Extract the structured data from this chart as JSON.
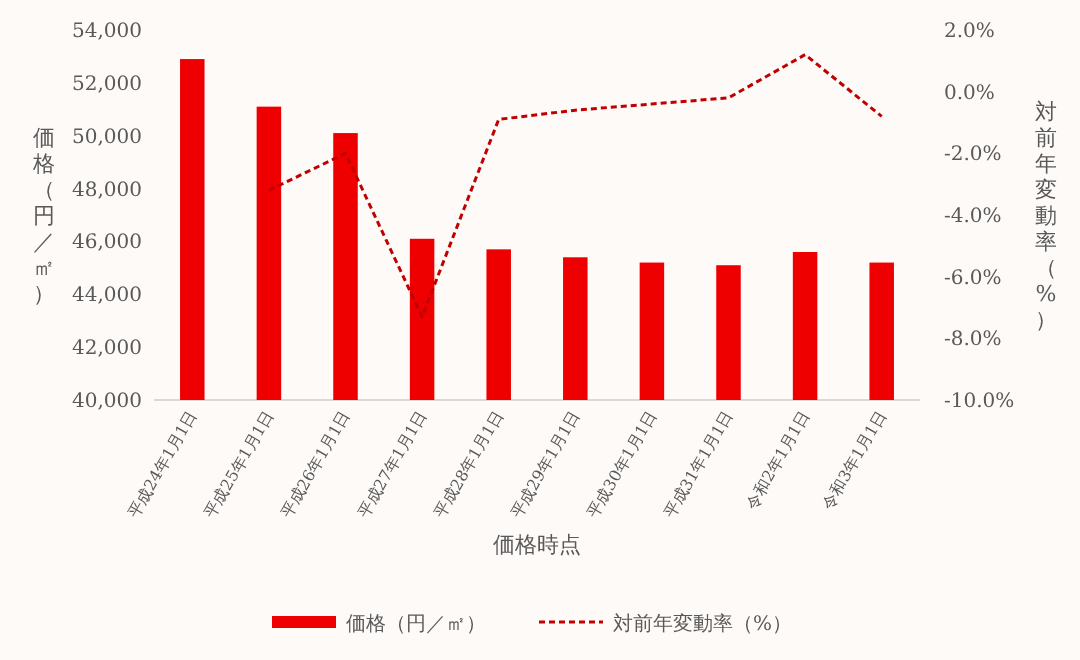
{
  "chart_data": {
    "type": "bar",
    "xlabel": "価格時点",
    "ylabel": "価格（円／㎡）",
    "y2label": "対前年変動率（%）",
    "categories": [
      "平成24年1月1日",
      "平成25年1月1日",
      "平成26年1月1日",
      "平成27年1月1日",
      "平成28年1月1日",
      "平成29年1月1日",
      "平成30年1月1日",
      "平成31年1月1日",
      "令和2年1月1日",
      "令和3年1月1日"
    ],
    "series": [
      {
        "name": "価格（円／㎡）",
        "color": "#ee0000",
        "values": [
          52900,
          51100,
          50100,
          46100,
          45700,
          45400,
          45200,
          45100,
          45600,
          45200
        ]
      },
      {
        "name": "対前年変動率（%）",
        "type": "line",
        "axis": "y2",
        "color": "#c00000",
        "line_style": "dashed",
        "values": [
          null,
          -3.2,
          -2.0,
          -7.3,
          -0.9,
          -0.6,
          -0.4,
          -0.2,
          1.2,
          -0.8
        ]
      }
    ],
    "ylim": [
      40000,
      54000
    ],
    "yticks": [
      {
        "value": 40000,
        "label": "40,000"
      },
      {
        "value": 42000,
        "label": "42,000"
      },
      {
        "value": 44000,
        "label": "44,000"
      },
      {
        "value": 46000,
        "label": "46,000"
      },
      {
        "value": 48000,
        "label": "48,000"
      },
      {
        "value": 50000,
        "label": "50,000"
      },
      {
        "value": 52000,
        "label": "52,000"
      },
      {
        "value": 54000,
        "label": "54,000"
      }
    ],
    "y2lim": [
      -10,
      2
    ],
    "y2ticks": [
      {
        "value": -10,
        "label": "-10.0%"
      },
      {
        "value": -8,
        "label": "-8.0%"
      },
      {
        "value": -6,
        "label": "-6.0%"
      },
      {
        "value": -4,
        "label": "-4.0%"
      },
      {
        "value": -2,
        "label": "-2.0%"
      },
      {
        "value": 0,
        "label": "0.0%"
      },
      {
        "value": 2,
        "label": "2.0%"
      }
    ],
    "legend": "bottom"
  }
}
